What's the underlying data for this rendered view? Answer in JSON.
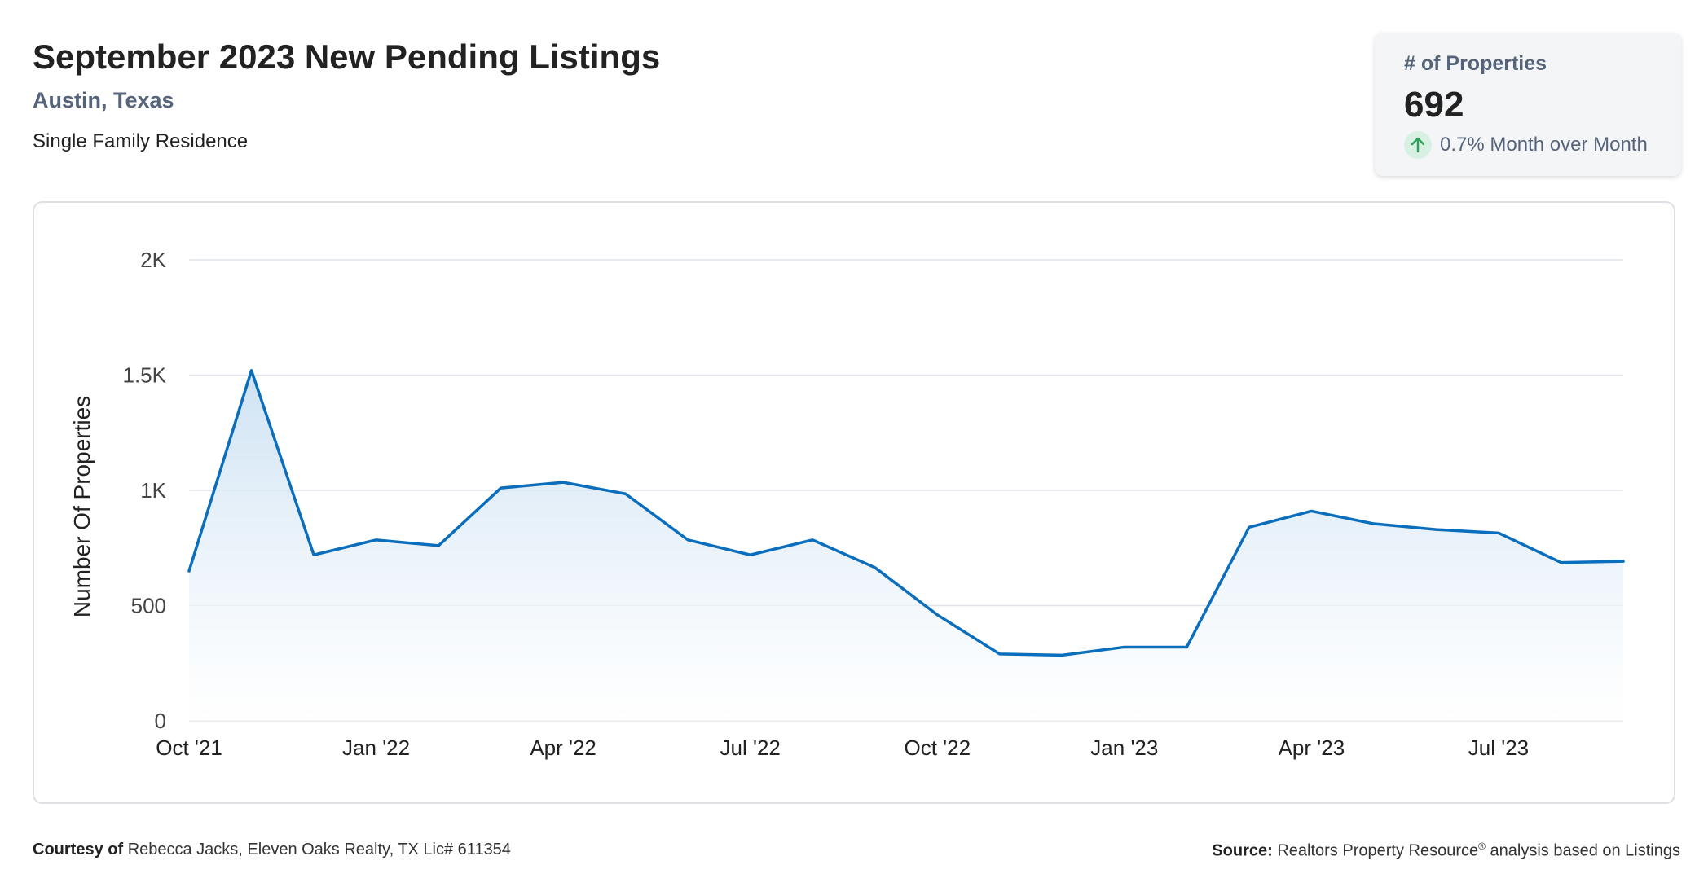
{
  "header": {
    "title": "September 2023 New Pending Listings",
    "location": "Austin, Texas",
    "category": "Single Family Residence"
  },
  "kpi": {
    "label": "# of Properties",
    "value": "692",
    "change_text": "0.7% Month over Month",
    "direction": "up",
    "icon": "arrow-up-icon",
    "change_color": "#2e9e5b"
  },
  "footer": {
    "courtesy_label": "Courtesy of",
    "courtesy_text": "Rebecca Jacks, Eleven Oaks Realty, TX Lic# 611354",
    "source_label": "Source:",
    "source_text_1": "Realtors Property Resource",
    "source_mark": "®",
    "source_text_2": "analysis based on Listings"
  },
  "chart_data": {
    "type": "area",
    "x": [
      "Oct '21",
      "Nov '21",
      "Dec '21",
      "Jan '22",
      "Feb '22",
      "Mar '22",
      "Apr '22",
      "May '22",
      "Jun '22",
      "Jul '22",
      "Aug '22",
      "Sep '22",
      "Oct '22",
      "Nov '22",
      "Dec '22",
      "Jan '23",
      "Feb '23",
      "Mar '23",
      "Apr '23",
      "May '23",
      "Jun '23",
      "Jul '23",
      "Aug '23",
      "Sep '23"
    ],
    "x_tick_labels": [
      "Oct '21",
      "Jan '22",
      "Apr '22",
      "Jul '22",
      "Oct '22",
      "Jan '23",
      "Apr '23",
      "Jul '23"
    ],
    "series": [
      {
        "values": [
          650,
          1520,
          720,
          785,
          760,
          1010,
          1035,
          985,
          785,
          720,
          785,
          665,
          460,
          290,
          285,
          320,
          320,
          840,
          910,
          855,
          830,
          815,
          687,
          692
        ]
      }
    ],
    "ylabel": "Number Of Properties",
    "xlabel": "",
    "ylim": [
      0,
      2000
    ],
    "yticks": [
      0,
      500,
      1000,
      1500,
      2000
    ],
    "ytick_labels": [
      "0",
      "500",
      "1K",
      "1.5K",
      "2K"
    ],
    "grid": true,
    "colors": {
      "line": "#0a6ebd",
      "fill_top": "#c9dff2",
      "fill_bottom": "#ffffff",
      "grid": "#dfe3e8"
    }
  }
}
